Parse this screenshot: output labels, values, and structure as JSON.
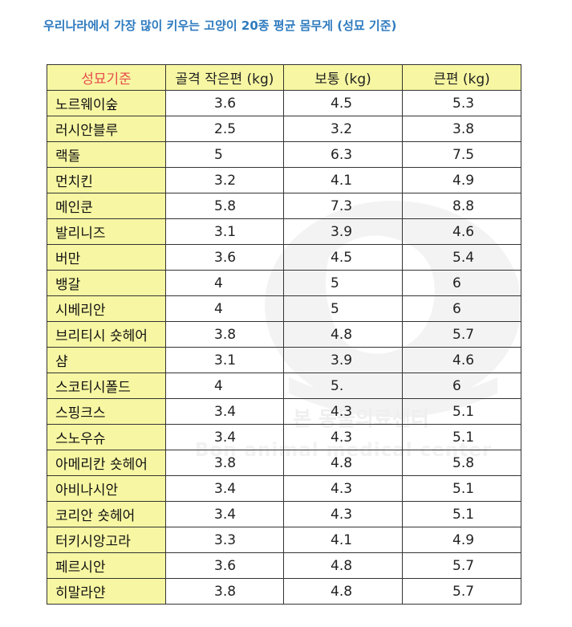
{
  "title": "우리나라에서 가장 많이 키우는 고양이 20종 평균 몸무게 (성묘 기준)",
  "table": {
    "columns": [
      "성묘기준",
      "골격 작은편 (kg)",
      "보통 (kg)",
      "큰편 (kg)"
    ],
    "rows": [
      {
        "breed": "노르웨이숲",
        "small": "3.6",
        "normal": "4.5",
        "large": "5.3"
      },
      {
        "breed": "러시안블루",
        "small": "2.5",
        "normal": "3.2",
        "large": "3.8"
      },
      {
        "breed": "랙돌",
        "small": "5",
        "normal": "6.3",
        "large": "7.5"
      },
      {
        "breed": "먼치킨",
        "small": "3.2",
        "normal": "4.1",
        "large": "4.9"
      },
      {
        "breed": "메인쿤",
        "small": "5.8",
        "normal": "7.3",
        "large": "8.8"
      },
      {
        "breed": "발리니즈",
        "small": "3.1",
        "normal": "3.9",
        "large": "4.6"
      },
      {
        "breed": "버만",
        "small": "3.6",
        "normal": "4.5",
        "large": "5.4"
      },
      {
        "breed": "뱅갈",
        "small": "4",
        "normal": "5",
        "large": "6"
      },
      {
        "breed": "시베리안",
        "small": "4",
        "normal": "5",
        "large": "6"
      },
      {
        "breed": "브리티시 숏헤어",
        "small": "3.8",
        "normal": "4.8",
        "large": "5.7"
      },
      {
        "breed": "샴",
        "small": "3.1",
        "normal": "3.9",
        "large": "4.6"
      },
      {
        "breed": "스코티시폴드",
        "small": "4",
        "normal": "5.",
        "large": "6"
      },
      {
        "breed": "스핑크스",
        "small": "3.4",
        "normal": "4.3",
        "large": "5.1"
      },
      {
        "breed": "스노우슈",
        "small": "3.4",
        "normal": "4.3",
        "large": "5.1"
      },
      {
        "breed": "아메리칸 숏헤어",
        "small": "3.8",
        "normal": "4.8",
        "large": "5.8"
      },
      {
        "breed": "아비나시안",
        "small": "3.4",
        "normal": "4.3",
        "large": "5.1"
      },
      {
        "breed": "코리안 숏헤어",
        "small": "3.4",
        "normal": "4.3",
        "large": "5.1"
      },
      {
        "breed": "터키시앙고라",
        "small": "3.3",
        "normal": "4.1",
        "large": "4.9"
      },
      {
        "breed": "페르시안",
        "small": "3.6",
        "normal": "4.8",
        "large": "5.7"
      },
      {
        "breed": "히말라얀",
        "small": "3.8",
        "normal": "4.8",
        "large": "5.7"
      }
    ]
  },
  "watermark": {
    "text": "본 동물의료센터",
    "subtext": "Bon animal medical center"
  },
  "colors": {
    "title": "#2e7bbf",
    "header_bg": "#f7f7a3",
    "corner_text": "#e74c4c",
    "border": "#333333"
  }
}
